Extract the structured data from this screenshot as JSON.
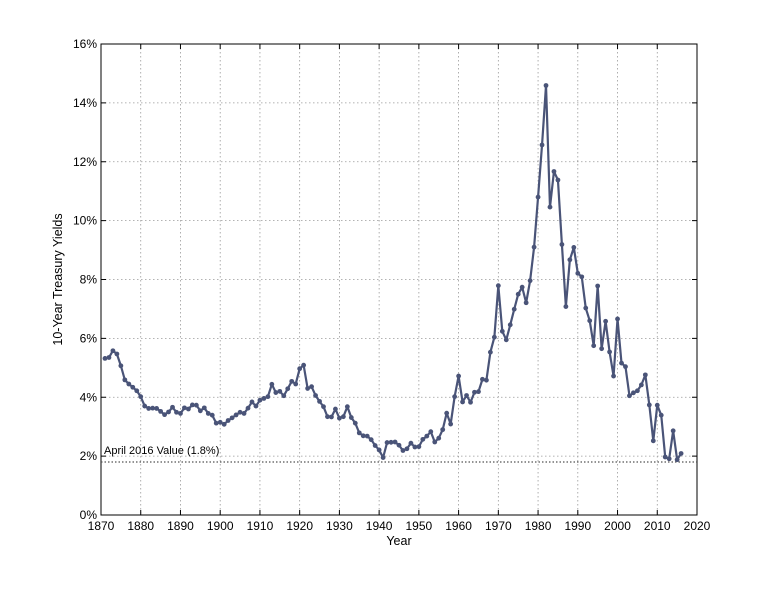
{
  "chart_data": {
    "type": "line",
    "title": "",
    "xlabel": "Year",
    "ylabel": "10-Year Treasury Yields",
    "xlim": [
      1870,
      2020
    ],
    "ylim": [
      0,
      16
    ],
    "xticks": [
      1870,
      1880,
      1890,
      1900,
      1910,
      1920,
      1930,
      1940,
      1950,
      1960,
      1970,
      1980,
      1990,
      2000,
      2010,
      2020
    ],
    "xtick_labels": [
      "1870",
      "1880",
      "1890",
      "1900",
      "1910",
      "1920",
      "1930",
      "1940",
      "1950",
      "1960",
      "1970",
      "1980",
      "1990",
      "2000",
      "2010",
      "2020"
    ],
    "yticks": [
      0,
      2,
      4,
      6,
      8,
      10,
      12,
      14,
      16
    ],
    "ytick_labels": [
      "0%",
      "2%",
      "4%",
      "6%",
      "8%",
      "10%",
      "12%",
      "14%",
      "16%"
    ],
    "grid": true,
    "line_color": "#4a5478",
    "reference_line": {
      "value": 1.8,
      "label": "April 2016 Value (1.8%)"
    },
    "series": [
      {
        "x": [
          1871,
          1872,
          1873,
          1874,
          1875,
          1876,
          1877,
          1878,
          1879,
          1880,
          1881,
          1882,
          1883,
          1884,
          1885,
          1886,
          1887,
          1888,
          1889,
          1890,
          1891,
          1892,
          1893,
          1894,
          1895,
          1896,
          1897,
          1898,
          1899,
          1900,
          1901,
          1902,
          1903,
          1904,
          1905,
          1906,
          1907,
          1908,
          1909,
          1910,
          1911,
          1912,
          1913,
          1914,
          1915,
          1916,
          1917,
          1918,
          1919,
          1920,
          1921,
          1922,
          1923,
          1924,
          1925,
          1926,
          1927,
          1928,
          1929,
          1930,
          1931,
          1932,
          1933,
          1934,
          1935,
          1936,
          1937,
          1938,
          1939,
          1940,
          1941,
          1942,
          1943,
          1944,
          1945,
          1946,
          1947,
          1948,
          1949,
          1950,
          1951,
          1952,
          1953,
          1954,
          1955,
          1956,
          1957,
          1958,
          1959,
          1960,
          1961,
          1962,
          1963,
          1964,
          1965,
          1966,
          1967,
          1968,
          1969,
          1970,
          1971,
          1972,
          1973,
          1974,
          1975,
          1976,
          1977,
          1978,
          1979,
          1980,
          1981,
          1982,
          1983,
          1984,
          1985,
          1986,
          1987,
          1988,
          1989,
          1990,
          1991,
          1992,
          1993,
          1994,
          1995,
          1996,
          1997,
          1998,
          1999,
          2000,
          2001,
          2002,
          2003,
          2004,
          2005,
          2006,
          2007,
          2008,
          2009,
          2010,
          2011,
          2012,
          2013,
          2014,
          2015,
          2016
        ],
        "values": [
          5.32,
          5.35,
          5.58,
          5.47,
          5.07,
          4.59,
          4.45,
          4.34,
          4.22,
          4.02,
          3.7,
          3.62,
          3.63,
          3.62,
          3.52,
          3.41,
          3.5,
          3.66,
          3.49,
          3.45,
          3.64,
          3.6,
          3.74,
          3.73,
          3.54,
          3.64,
          3.45,
          3.39,
          3.12,
          3.15,
          3.08,
          3.21,
          3.3,
          3.4,
          3.49,
          3.45,
          3.63,
          3.84,
          3.7,
          3.9,
          3.96,
          4.02,
          4.44,
          4.16,
          4.2,
          4.05,
          4.29,
          4.54,
          4.45,
          4.97,
          5.09,
          4.3,
          4.36,
          4.06,
          3.86,
          3.68,
          3.34,
          3.33,
          3.6,
          3.29,
          3.34,
          3.68,
          3.31,
          3.12,
          2.79,
          2.69,
          2.68,
          2.56,
          2.36,
          2.21,
          1.95,
          2.46,
          2.47,
          2.48,
          2.37,
          2.19,
          2.25,
          2.44,
          2.31,
          2.32,
          2.57,
          2.68,
          2.83,
          2.48,
          2.61,
          2.9,
          3.46,
          3.09,
          4.02,
          4.72,
          3.84,
          4.06,
          3.83,
          4.17,
          4.19,
          4.61,
          4.58,
          5.53,
          6.04,
          7.79,
          6.24,
          5.95,
          6.46,
          6.99,
          7.5,
          7.74,
          7.21,
          7.96,
          9.1,
          10.8,
          12.57,
          14.59,
          10.46,
          11.67,
          11.38,
          9.19,
          7.08,
          8.67,
          9.09,
          8.21,
          8.09,
          7.03,
          6.6,
          5.75,
          7.78,
          5.65,
          6.58,
          5.54,
          4.72,
          6.66,
          5.16,
          5.04,
          4.05,
          4.15,
          4.22,
          4.42,
          4.76,
          3.74,
          2.52,
          3.73,
          3.39,
          1.97,
          1.91,
          2.86,
          1.88,
          2.09
        ]
      }
    ]
  }
}
